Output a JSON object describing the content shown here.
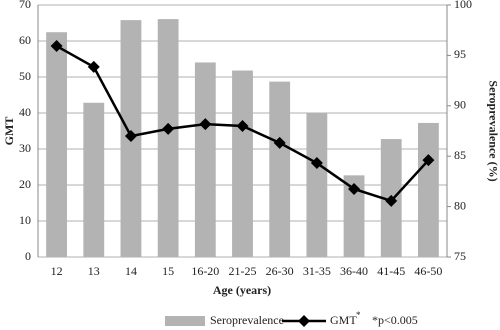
{
  "chart_data": {
    "type": "combo",
    "x_label": "Age (years)",
    "y_label": "GMT",
    "y2_label": "Seroprevalence (%)",
    "categories": [
      "12",
      "13",
      "14",
      "15",
      "16-20",
      "21-25",
      "26-30",
      "31-35",
      "36-40",
      "41-45",
      "46-50"
    ],
    "series": [
      {
        "name": "Seroprevalence",
        "type": "bar",
        "axis": "y2",
        "color": "#b3b3b3",
        "values": [
          97.3,
          90.3,
          98.5,
          98.6,
          94.3,
          93.5,
          92.4,
          89.3,
          83.1,
          86.7,
          88.3
        ]
      },
      {
        "name": "GMT",
        "type": "line",
        "color": "#000000",
        "values": [
          58.6,
          52.8,
          33.6,
          35.6,
          36.9,
          36.4,
          31.7,
          26.1,
          18.9,
          15.6,
          26.9
        ]
      }
    ],
    "legend_marks": [
      "*",
      "*p<0.005"
    ],
    "ylim": [
      0,
      70
    ],
    "yticks": [
      0,
      10,
      20,
      30,
      40,
      50,
      60,
      70
    ],
    "y2lim": [
      75,
      100
    ],
    "y2ticks": [
      75,
      80,
      85,
      90,
      95,
      100
    ],
    "grid": true
  }
}
